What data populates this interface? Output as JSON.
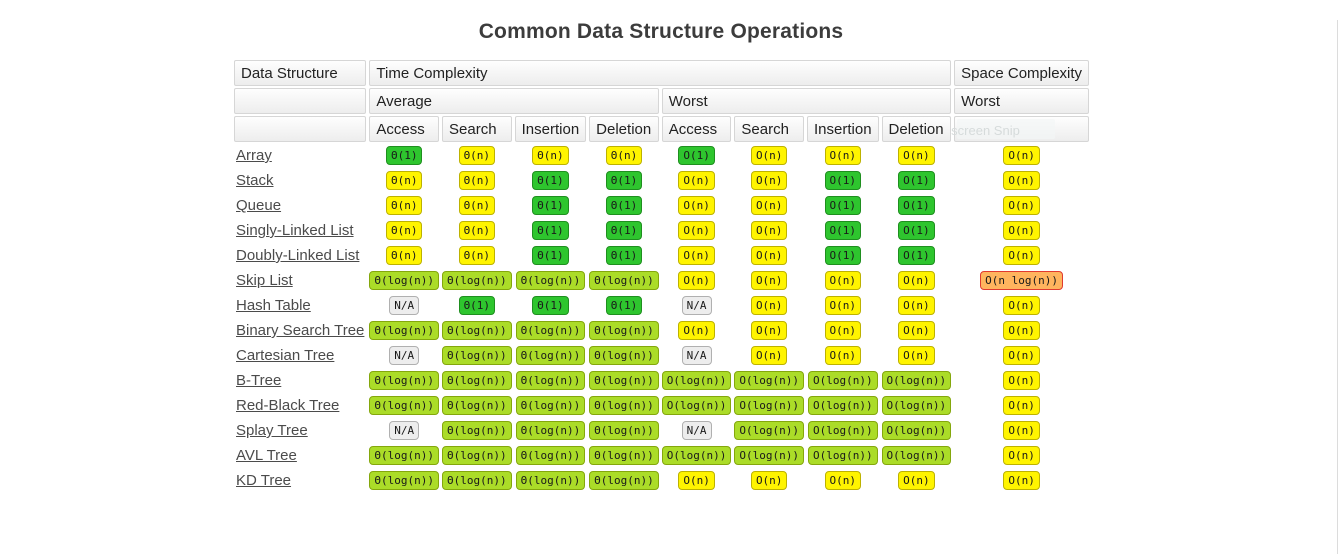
{
  "title": "Common Data Structure Operations",
  "table": {
    "corner_label": "Data Structure",
    "time_header": "Time Complexity",
    "space_header": "Space Complexity",
    "avg_header": "Average",
    "worst_header": "Worst",
    "space_worst_header": "Worst",
    "op_headers": [
      "Access",
      "Search",
      "Insertion",
      "Deletion",
      "Access",
      "Search",
      "Insertion",
      "Deletion"
    ],
    "ghost_overlay_text": "screen Snip",
    "rows": [
      {
        "name": "Array",
        "cells": [
          {
            "t": "Θ(1)",
            "c": "g"
          },
          {
            "t": "Θ(n)",
            "c": "y"
          },
          {
            "t": "Θ(n)",
            "c": "y"
          },
          {
            "t": "Θ(n)",
            "c": "y"
          },
          {
            "t": "O(1)",
            "c": "g"
          },
          {
            "t": "O(n)",
            "c": "y"
          },
          {
            "t": "O(n)",
            "c": "y"
          },
          {
            "t": "O(n)",
            "c": "y"
          },
          {
            "t": "O(n)",
            "c": "y"
          }
        ]
      },
      {
        "name": "Stack",
        "cells": [
          {
            "t": "Θ(n)",
            "c": "y"
          },
          {
            "t": "Θ(n)",
            "c": "y"
          },
          {
            "t": "Θ(1)",
            "c": "g"
          },
          {
            "t": "Θ(1)",
            "c": "g"
          },
          {
            "t": "O(n)",
            "c": "y"
          },
          {
            "t": "O(n)",
            "c": "y"
          },
          {
            "t": "O(1)",
            "c": "g"
          },
          {
            "t": "O(1)",
            "c": "g"
          },
          {
            "t": "O(n)",
            "c": "y"
          }
        ]
      },
      {
        "name": "Queue",
        "cells": [
          {
            "t": "Θ(n)",
            "c": "y"
          },
          {
            "t": "Θ(n)",
            "c": "y"
          },
          {
            "t": "Θ(1)",
            "c": "g"
          },
          {
            "t": "Θ(1)",
            "c": "g"
          },
          {
            "t": "O(n)",
            "c": "y"
          },
          {
            "t": "O(n)",
            "c": "y"
          },
          {
            "t": "O(1)",
            "c": "g"
          },
          {
            "t": "O(1)",
            "c": "g"
          },
          {
            "t": "O(n)",
            "c": "y"
          }
        ]
      },
      {
        "name": "Singly-Linked List",
        "cells": [
          {
            "t": "Θ(n)",
            "c": "y"
          },
          {
            "t": "Θ(n)",
            "c": "y"
          },
          {
            "t": "Θ(1)",
            "c": "g"
          },
          {
            "t": "Θ(1)",
            "c": "g"
          },
          {
            "t": "O(n)",
            "c": "y"
          },
          {
            "t": "O(n)",
            "c": "y"
          },
          {
            "t": "O(1)",
            "c": "g"
          },
          {
            "t": "O(1)",
            "c": "g"
          },
          {
            "t": "O(n)",
            "c": "y"
          }
        ]
      },
      {
        "name": "Doubly-Linked List",
        "cells": [
          {
            "t": "Θ(n)",
            "c": "y"
          },
          {
            "t": "Θ(n)",
            "c": "y"
          },
          {
            "t": "Θ(1)",
            "c": "g"
          },
          {
            "t": "Θ(1)",
            "c": "g"
          },
          {
            "t": "O(n)",
            "c": "y"
          },
          {
            "t": "O(n)",
            "c": "y"
          },
          {
            "t": "O(1)",
            "c": "g"
          },
          {
            "t": "O(1)",
            "c": "g"
          },
          {
            "t": "O(n)",
            "c": "y"
          }
        ]
      },
      {
        "name": "Skip List",
        "cells": [
          {
            "t": "Θ(log(n))",
            "c": "yg"
          },
          {
            "t": "Θ(log(n))",
            "c": "yg"
          },
          {
            "t": "Θ(log(n))",
            "c": "yg"
          },
          {
            "t": "Θ(log(n))",
            "c": "yg"
          },
          {
            "t": "O(n)",
            "c": "y"
          },
          {
            "t": "O(n)",
            "c": "y"
          },
          {
            "t": "O(n)",
            "c": "y"
          },
          {
            "t": "O(n)",
            "c": "y"
          },
          {
            "t": "O(n log(n))",
            "c": "o"
          }
        ]
      },
      {
        "name": "Hash Table",
        "cells": [
          {
            "t": "N/A",
            "c": "na"
          },
          {
            "t": "Θ(1)",
            "c": "g"
          },
          {
            "t": "Θ(1)",
            "c": "g"
          },
          {
            "t": "Θ(1)",
            "c": "g"
          },
          {
            "t": "N/A",
            "c": "na"
          },
          {
            "t": "O(n)",
            "c": "y"
          },
          {
            "t": "O(n)",
            "c": "y"
          },
          {
            "t": "O(n)",
            "c": "y"
          },
          {
            "t": "O(n)",
            "c": "y"
          }
        ]
      },
      {
        "name": "Binary Search Tree",
        "cells": [
          {
            "t": "Θ(log(n))",
            "c": "yg"
          },
          {
            "t": "Θ(log(n))",
            "c": "yg"
          },
          {
            "t": "Θ(log(n))",
            "c": "yg"
          },
          {
            "t": "Θ(log(n))",
            "c": "yg"
          },
          {
            "t": "O(n)",
            "c": "y"
          },
          {
            "t": "O(n)",
            "c": "y"
          },
          {
            "t": "O(n)",
            "c": "y"
          },
          {
            "t": "O(n)",
            "c": "y"
          },
          {
            "t": "O(n)",
            "c": "y"
          }
        ]
      },
      {
        "name": "Cartesian Tree",
        "cells": [
          {
            "t": "N/A",
            "c": "na"
          },
          {
            "t": "Θ(log(n))",
            "c": "yg"
          },
          {
            "t": "Θ(log(n))",
            "c": "yg"
          },
          {
            "t": "Θ(log(n))",
            "c": "yg"
          },
          {
            "t": "N/A",
            "c": "na"
          },
          {
            "t": "O(n)",
            "c": "y"
          },
          {
            "t": "O(n)",
            "c": "y"
          },
          {
            "t": "O(n)",
            "c": "y"
          },
          {
            "t": "O(n)",
            "c": "y"
          }
        ]
      },
      {
        "name": "B-Tree",
        "cells": [
          {
            "t": "Θ(log(n))",
            "c": "yg"
          },
          {
            "t": "Θ(log(n))",
            "c": "yg"
          },
          {
            "t": "Θ(log(n))",
            "c": "yg"
          },
          {
            "t": "Θ(log(n))",
            "c": "yg"
          },
          {
            "t": "O(log(n))",
            "c": "yg"
          },
          {
            "t": "O(log(n))",
            "c": "yg"
          },
          {
            "t": "O(log(n))",
            "c": "yg"
          },
          {
            "t": "O(log(n))",
            "c": "yg"
          },
          {
            "t": "O(n)",
            "c": "y"
          }
        ]
      },
      {
        "name": "Red-Black Tree",
        "cells": [
          {
            "t": "Θ(log(n))",
            "c": "yg"
          },
          {
            "t": "Θ(log(n))",
            "c": "yg"
          },
          {
            "t": "Θ(log(n))",
            "c": "yg"
          },
          {
            "t": "Θ(log(n))",
            "c": "yg"
          },
          {
            "t": "O(log(n))",
            "c": "yg"
          },
          {
            "t": "O(log(n))",
            "c": "yg"
          },
          {
            "t": "O(log(n))",
            "c": "yg"
          },
          {
            "t": "O(log(n))",
            "c": "yg"
          },
          {
            "t": "O(n)",
            "c": "y"
          }
        ]
      },
      {
        "name": "Splay Tree",
        "cells": [
          {
            "t": "N/A",
            "c": "na"
          },
          {
            "t": "Θ(log(n))",
            "c": "yg"
          },
          {
            "t": "Θ(log(n))",
            "c": "yg"
          },
          {
            "t": "Θ(log(n))",
            "c": "yg"
          },
          {
            "t": "N/A",
            "c": "na"
          },
          {
            "t": "O(log(n))",
            "c": "yg"
          },
          {
            "t": "O(log(n))",
            "c": "yg"
          },
          {
            "t": "O(log(n))",
            "c": "yg"
          },
          {
            "t": "O(n)",
            "c": "y"
          }
        ]
      },
      {
        "name": "AVL Tree",
        "cells": [
          {
            "t": "Θ(log(n))",
            "c": "yg"
          },
          {
            "t": "Θ(log(n))",
            "c": "yg"
          },
          {
            "t": "Θ(log(n))",
            "c": "yg"
          },
          {
            "t": "Θ(log(n))",
            "c": "yg"
          },
          {
            "t": "O(log(n))",
            "c": "yg"
          },
          {
            "t": "O(log(n))",
            "c": "yg"
          },
          {
            "t": "O(log(n))",
            "c": "yg"
          },
          {
            "t": "O(log(n))",
            "c": "yg"
          },
          {
            "t": "O(n)",
            "c": "y"
          }
        ]
      },
      {
        "name": "KD Tree",
        "cells": [
          {
            "t": "Θ(log(n))",
            "c": "yg"
          },
          {
            "t": "Θ(log(n))",
            "c": "yg"
          },
          {
            "t": "Θ(log(n))",
            "c": "yg"
          },
          {
            "t": "Θ(log(n))",
            "c": "yg"
          },
          {
            "t": "O(n)",
            "c": "y"
          },
          {
            "t": "O(n)",
            "c": "y"
          },
          {
            "t": "O(n)",
            "c": "y"
          },
          {
            "t": "O(n)",
            "c": "y"
          },
          {
            "t": "O(n)",
            "c": "y"
          }
        ]
      }
    ]
  },
  "colors": {
    "g": {
      "bg": "#2ec52e",
      "border": "#1f8f1f"
    },
    "yg": {
      "bg": "#abdc28",
      "border": "#84a70c"
    },
    "y": {
      "bg": "#fff400",
      "border": "#bdb200"
    },
    "o": {
      "bg": "#ffb45e",
      "border": "#e03a2f"
    },
    "na": {
      "bg": "#ededed",
      "border": "#b0b0b0"
    }
  }
}
